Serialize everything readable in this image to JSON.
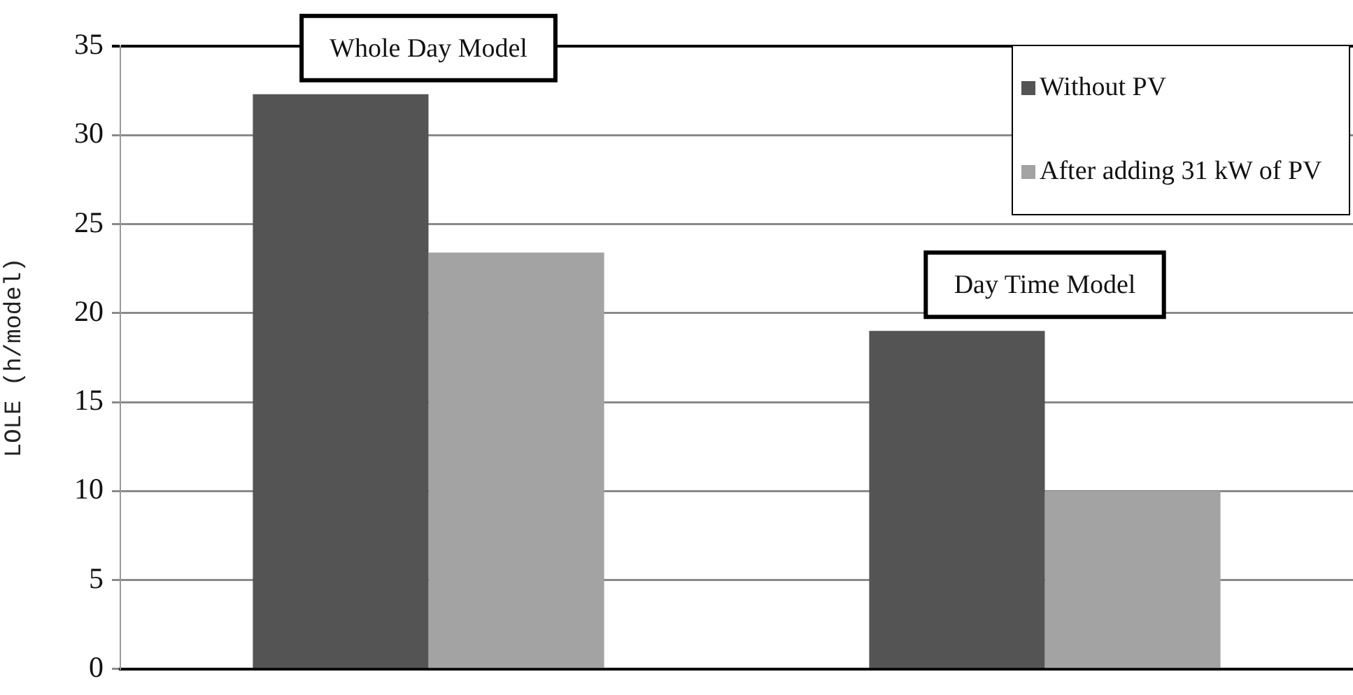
{
  "chart_data": {
    "type": "bar",
    "categories": [
      "Whole Day Model",
      "Day Time Model"
    ],
    "series": [
      {
        "name": "Without PV",
        "color": "#545454",
        "values": [
          32.3,
          19
        ]
      },
      {
        "name": "After adding 31 kW of PV",
        "color": "#a3a3a3",
        "values": [
          23.4,
          10
        ]
      }
    ],
    "ylabel": "LOLE (h/model)",
    "ylim": [
      0,
      35
    ],
    "yticks": [
      0,
      5,
      10,
      15,
      20,
      25,
      30,
      35
    ],
    "grid": "y",
    "legend": "top right"
  }
}
